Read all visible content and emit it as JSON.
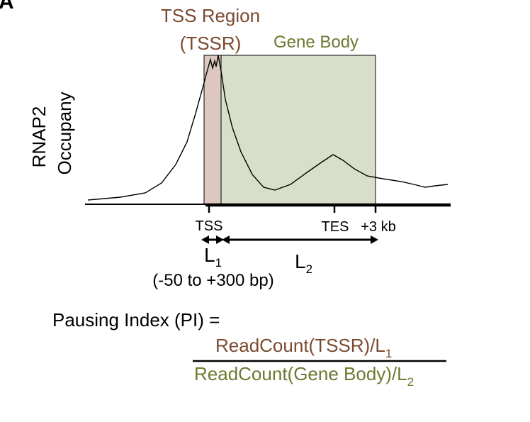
{
  "panel_label": "A",
  "labels": {
    "tssr_line1": "TSS Region",
    "tssr_line2": "(TSSR)",
    "gene_body": "Gene Body",
    "y_axis_line1": "RNAP2",
    "y_axis_line2": "Occupany",
    "tss_tick": "TSS",
    "tes_tick": "TES",
    "plus3kb_tick": "+3 kb",
    "l1": "L",
    "l1_sub": "1",
    "l2": "L",
    "l2_sub": "2",
    "range": "(-50 to +300 bp)"
  },
  "formula": {
    "lhs": "Pausing Index (PI) =",
    "numerator": "ReadCount(TSSR)/L",
    "numerator_sub": "1",
    "denominator": "ReadCount(Gene Body)/L",
    "denominator_sub": "2"
  },
  "colors": {
    "tssr_fill": "#dcc8c0",
    "gene_body_fill": "#d8dfc8",
    "tssr_text": "#7a4a30",
    "gene_body_text": "#6b7a30",
    "ink": "#000000"
  }
}
